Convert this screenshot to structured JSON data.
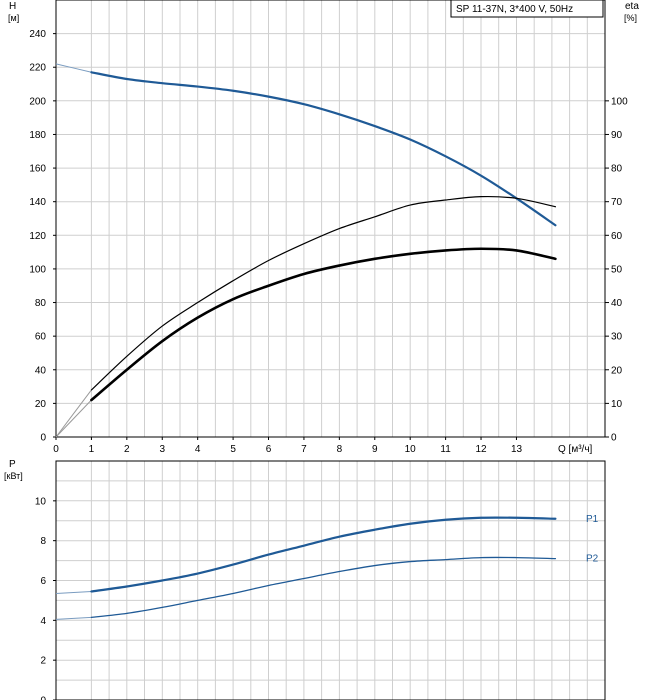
{
  "chart_data": [
    {
      "type": "line",
      "panel": "head-efficiency",
      "legend": "SP 11-37N, 3*400 V, 50Hz",
      "ylabel_left": "H",
      "yunit_left": "[м]",
      "ylabel_right": "eta",
      "yunit_right": "[%]",
      "xlabel": "Q [м³/ч]",
      "xlim": [
        0,
        15.5
      ],
      "xticks": [
        "0",
        "1",
        "2",
        "3",
        "4",
        "5",
        "6",
        "7",
        "8",
        "9",
        "10",
        "11",
        "12",
        "13"
      ],
      "ylim_left": [
        0,
        260
      ],
      "yticks_left": [
        "0",
        "20",
        "40",
        "60",
        "80",
        "100",
        "120",
        "140",
        "160",
        "180",
        "200",
        "220",
        "240"
      ],
      "ylim_right": [
        0,
        130
      ],
      "yticks_right": [
        "0",
        "10",
        "20",
        "30",
        "40",
        "50",
        "60",
        "70",
        "80",
        "90",
        "100"
      ],
      "grid": true,
      "series": [
        {
          "key": "head",
          "axis": "left",
          "color": "#1f5a96",
          "x": [
            0,
            1,
            2,
            3,
            4,
            5,
            6,
            7,
            8,
            9,
            10,
            11,
            12,
            13,
            14.1
          ],
          "y": [
            222,
            217,
            213,
            210.5,
            208.5,
            206,
            202.5,
            198,
            192,
            185,
            177,
            167,
            155.5,
            142,
            126
          ]
        },
        {
          "key": "eta-total",
          "axis": "right",
          "color": "#000000",
          "x": [
            0,
            1,
            2,
            3,
            4,
            5,
            6,
            7,
            8,
            9,
            10,
            11,
            12,
            13,
            14.1
          ],
          "y": [
            0,
            14,
            24,
            33,
            40,
            46.5,
            52.5,
            57.5,
            62,
            65.5,
            69,
            70.5,
            71.5,
            71,
            68.5
          ]
        },
        {
          "key": "eta-pump",
          "axis": "right",
          "color": "#000000",
          "x": [
            0,
            1,
            2,
            3,
            4,
            5,
            6,
            7,
            8,
            9,
            10,
            11,
            12,
            13,
            14.1
          ],
          "y": [
            0,
            11,
            20,
            28.5,
            35.5,
            41,
            45,
            48.5,
            51,
            53,
            54.5,
            55.5,
            56,
            55.5,
            53
          ]
        }
      ]
    },
    {
      "type": "line",
      "panel": "power",
      "ylabel": "P",
      "yunit": "[кВт]",
      "xlim": [
        0,
        15.5
      ],
      "ylim": [
        0,
        12
      ],
      "yticks": [
        "0",
        "2",
        "4",
        "6",
        "8",
        "10"
      ],
      "grid": true,
      "series": [
        {
          "name": "P1",
          "color": "#1f5a96",
          "x": [
            0,
            1,
            2,
            3,
            4,
            5,
            6,
            7,
            8,
            9,
            10,
            11,
            12,
            13,
            14.1
          ],
          "y": [
            5.35,
            5.45,
            5.7,
            6.0,
            6.35,
            6.8,
            7.3,
            7.75,
            8.2,
            8.55,
            8.85,
            9.05,
            9.15,
            9.15,
            9.1
          ]
        },
        {
          "name": "P2",
          "color": "#1f5a96",
          "x": [
            0,
            1,
            2,
            3,
            4,
            5,
            6,
            7,
            8,
            9,
            10,
            11,
            12,
            13,
            14.1
          ],
          "y": [
            4.05,
            4.15,
            4.35,
            4.65,
            5.0,
            5.35,
            5.75,
            6.1,
            6.45,
            6.75,
            6.95,
            7.05,
            7.15,
            7.15,
            7.1
          ]
        }
      ]
    }
  ]
}
